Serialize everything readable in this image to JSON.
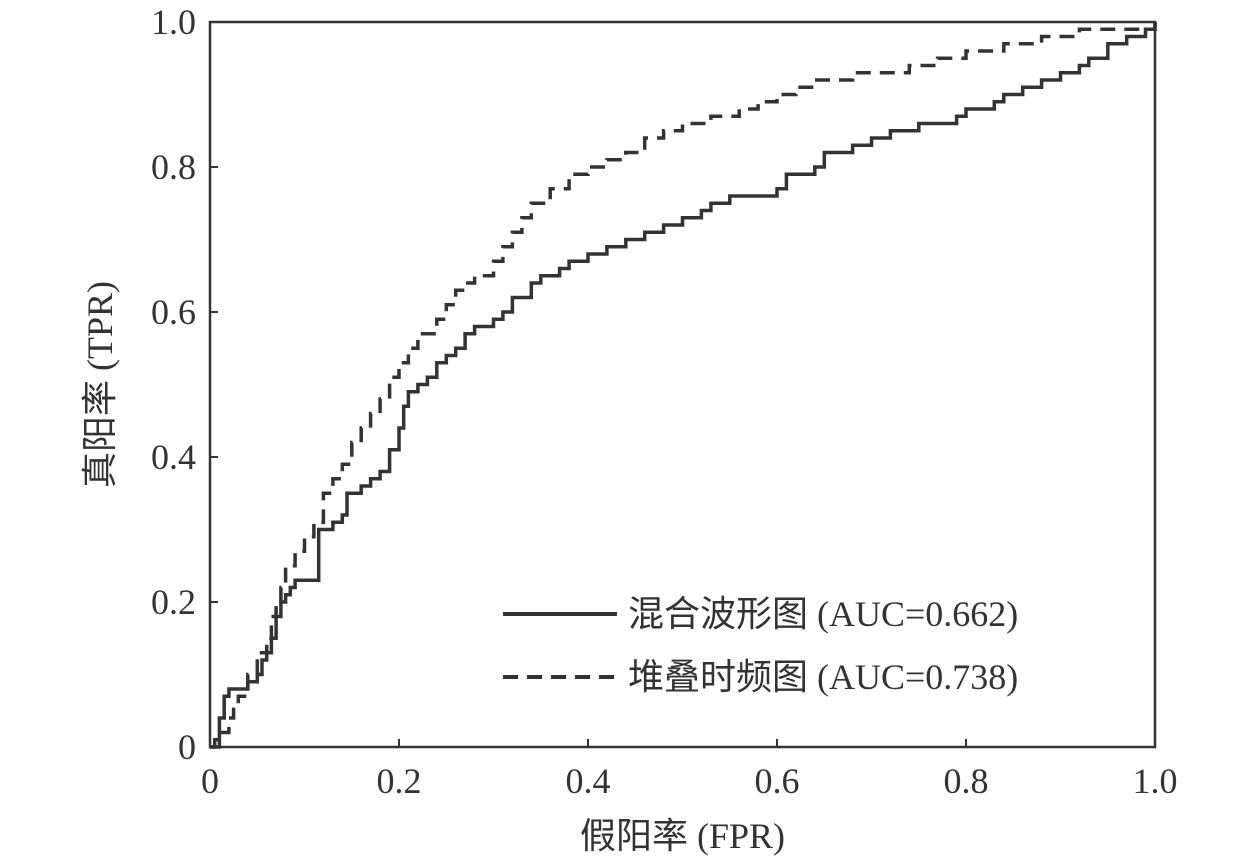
{
  "chart_data": {
    "type": "line",
    "xlabel": "假阳率 (FPR)",
    "ylabel": "真阳率 (TPR)",
    "xlim": [
      0,
      1
    ],
    "ylim": [
      0,
      1
    ],
    "grid": false,
    "legend_position": "bottom-right",
    "x_ticks": [
      {
        "value": 0,
        "label": "0"
      },
      {
        "value": 0.2,
        "label": "0.2"
      },
      {
        "value": 0.4,
        "label": "0.4"
      },
      {
        "value": 0.6,
        "label": "0.6"
      },
      {
        "value": 0.8,
        "label": "0.8"
      },
      {
        "value": 1.0,
        "label": "1.0"
      }
    ],
    "y_ticks": [
      {
        "value": 0,
        "label": "0"
      },
      {
        "value": 0.2,
        "label": "0.2"
      },
      {
        "value": 0.4,
        "label": "0.4"
      },
      {
        "value": 0.6,
        "label": "0.6"
      },
      {
        "value": 0.8,
        "label": "0.8"
      },
      {
        "value": 1.0,
        "label": "1.0"
      }
    ],
    "series": [
      {
        "name": "混合波形图 (AUC=0.662)",
        "style": "solid",
        "color": "#333333",
        "points": [
          [
            0,
            0
          ],
          [
            0.005,
            0.01
          ],
          [
            0.01,
            0.04
          ],
          [
            0.015,
            0.07
          ],
          [
            0.02,
            0.08
          ],
          [
            0.03,
            0.08
          ],
          [
            0.04,
            0.09
          ],
          [
            0.05,
            0.1
          ],
          [
            0.055,
            0.12
          ],
          [
            0.06,
            0.13
          ],
          [
            0.065,
            0.15
          ],
          [
            0.07,
            0.18
          ],
          [
            0.075,
            0.2
          ],
          [
            0.08,
            0.21
          ],
          [
            0.085,
            0.22
          ],
          [
            0.09,
            0.23
          ],
          [
            0.1,
            0.23
          ],
          [
            0.11,
            0.23
          ],
          [
            0.115,
            0.3
          ],
          [
            0.13,
            0.31
          ],
          [
            0.14,
            0.32
          ],
          [
            0.145,
            0.35
          ],
          [
            0.16,
            0.36
          ],
          [
            0.17,
            0.37
          ],
          [
            0.18,
            0.38
          ],
          [
            0.19,
            0.41
          ],
          [
            0.2,
            0.44
          ],
          [
            0.205,
            0.47
          ],
          [
            0.21,
            0.49
          ],
          [
            0.22,
            0.5
          ],
          [
            0.23,
            0.51
          ],
          [
            0.24,
            0.53
          ],
          [
            0.25,
            0.54
          ],
          [
            0.26,
            0.55
          ],
          [
            0.27,
            0.57
          ],
          [
            0.28,
            0.58
          ],
          [
            0.3,
            0.59
          ],
          [
            0.31,
            0.6
          ],
          [
            0.32,
            0.62
          ],
          [
            0.34,
            0.64
          ],
          [
            0.35,
            0.65
          ],
          [
            0.37,
            0.66
          ],
          [
            0.38,
            0.67
          ],
          [
            0.4,
            0.68
          ],
          [
            0.42,
            0.69
          ],
          [
            0.44,
            0.7
          ],
          [
            0.46,
            0.71
          ],
          [
            0.48,
            0.72
          ],
          [
            0.5,
            0.73
          ],
          [
            0.52,
            0.74
          ],
          [
            0.53,
            0.75
          ],
          [
            0.55,
            0.76
          ],
          [
            0.6,
            0.77
          ],
          [
            0.61,
            0.79
          ],
          [
            0.64,
            0.8
          ],
          [
            0.65,
            0.82
          ],
          [
            0.68,
            0.83
          ],
          [
            0.7,
            0.84
          ],
          [
            0.72,
            0.85
          ],
          [
            0.75,
            0.86
          ],
          [
            0.78,
            0.86
          ],
          [
            0.79,
            0.87
          ],
          [
            0.8,
            0.88
          ],
          [
            0.83,
            0.89
          ],
          [
            0.84,
            0.9
          ],
          [
            0.86,
            0.91
          ],
          [
            0.88,
            0.92
          ],
          [
            0.9,
            0.93
          ],
          [
            0.92,
            0.94
          ],
          [
            0.93,
            0.95
          ],
          [
            0.95,
            0.97
          ],
          [
            0.97,
            0.98
          ],
          [
            0.99,
            0.99
          ],
          [
            1.0,
            1.0
          ]
        ]
      },
      {
        "name": "堆叠时频图 (AUC=0.738)",
        "style": "dashed",
        "color": "#333333",
        "points": [
          [
            0,
            0
          ],
          [
            0.01,
            0.02
          ],
          [
            0.02,
            0.04
          ],
          [
            0.025,
            0.06
          ],
          [
            0.03,
            0.07
          ],
          [
            0.04,
            0.1
          ],
          [
            0.05,
            0.13
          ],
          [
            0.06,
            0.15
          ],
          [
            0.065,
            0.18
          ],
          [
            0.07,
            0.2
          ],
          [
            0.075,
            0.22
          ],
          [
            0.08,
            0.25
          ],
          [
            0.09,
            0.27
          ],
          [
            0.1,
            0.29
          ],
          [
            0.11,
            0.31
          ],
          [
            0.12,
            0.35
          ],
          [
            0.13,
            0.37
          ],
          [
            0.14,
            0.39
          ],
          [
            0.15,
            0.42
          ],
          [
            0.16,
            0.44
          ],
          [
            0.17,
            0.46
          ],
          [
            0.18,
            0.48
          ],
          [
            0.19,
            0.51
          ],
          [
            0.2,
            0.53
          ],
          [
            0.21,
            0.55
          ],
          [
            0.22,
            0.57
          ],
          [
            0.24,
            0.59
          ],
          [
            0.25,
            0.61
          ],
          [
            0.26,
            0.63
          ],
          [
            0.27,
            0.64
          ],
          [
            0.28,
            0.65
          ],
          [
            0.3,
            0.67
          ],
          [
            0.31,
            0.69
          ],
          [
            0.32,
            0.71
          ],
          [
            0.33,
            0.73
          ],
          [
            0.34,
            0.75
          ],
          [
            0.36,
            0.77
          ],
          [
            0.38,
            0.79
          ],
          [
            0.4,
            0.8
          ],
          [
            0.42,
            0.81
          ],
          [
            0.44,
            0.82
          ],
          [
            0.46,
            0.84
          ],
          [
            0.48,
            0.85
          ],
          [
            0.5,
            0.86
          ],
          [
            0.53,
            0.87
          ],
          [
            0.56,
            0.88
          ],
          [
            0.58,
            0.89
          ],
          [
            0.6,
            0.9
          ],
          [
            0.62,
            0.91
          ],
          [
            0.64,
            0.92
          ],
          [
            0.68,
            0.93
          ],
          [
            0.72,
            0.93
          ],
          [
            0.74,
            0.94
          ],
          [
            0.77,
            0.95
          ],
          [
            0.8,
            0.96
          ],
          [
            0.84,
            0.97
          ],
          [
            0.88,
            0.98
          ],
          [
            0.92,
            0.99
          ],
          [
            0.96,
            0.99
          ],
          [
            1.0,
            1.0
          ]
        ]
      }
    ]
  }
}
